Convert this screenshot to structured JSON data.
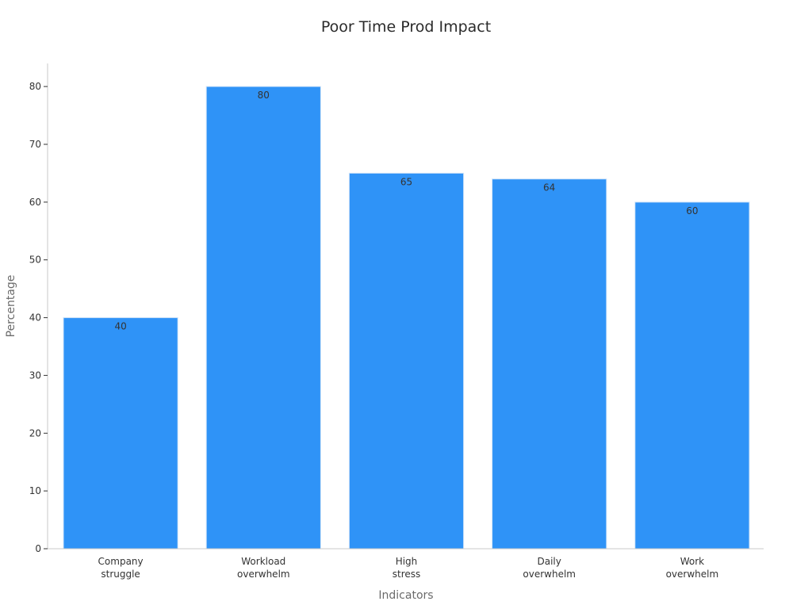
{
  "chart_data": {
    "type": "bar",
    "title": "Poor Time Prod Impact",
    "xlabel": "Indicators",
    "ylabel": "Percentage",
    "categories": [
      [
        "Company",
        "struggle"
      ],
      [
        "Workload",
        "overwhelm"
      ],
      [
        "High",
        "stress"
      ],
      [
        "Daily",
        "overwhelm"
      ],
      [
        "Work",
        "overwhelm"
      ]
    ],
    "values": [
      40,
      80,
      65,
      64,
      60
    ],
    "value_labels": [
      "40",
      "80",
      "65",
      "64",
      "60"
    ],
    "ylim": [
      0,
      84
    ],
    "yticks": [
      0,
      10,
      20,
      30,
      40,
      50,
      60,
      70,
      80
    ],
    "ytick_labels": [
      "0",
      "10",
      "20",
      "30",
      "40",
      "50",
      "60",
      "70",
      "80"
    ],
    "grid": false,
    "legend": "none",
    "colors": {
      "bar": "#2f93f7",
      "bar_edge": "#cfe3f8",
      "axis": "#c8c8c8"
    }
  }
}
